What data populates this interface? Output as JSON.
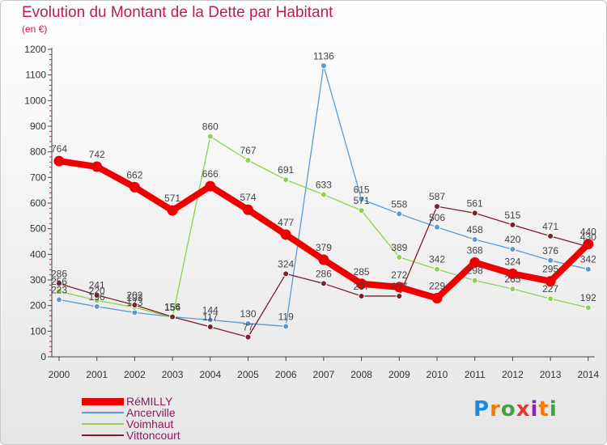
{
  "header": {
    "title": "Evolution du Montant de la Dette par Habitant",
    "subtitle": "(en €)"
  },
  "logo": {
    "text": "Proxiti",
    "letters": [
      "P",
      "r",
      "o",
      "x",
      "i",
      "t",
      "i"
    ],
    "colors": [
      "#1e88e5",
      "#f57c00",
      "#43a047",
      "#e53935",
      "#8e24aa",
      "#f57c00",
      "#43a047"
    ]
  },
  "chart_data": {
    "type": "line",
    "title": "Evolution du Montant de la Dette par Habitant",
    "ylabel": "(en €)",
    "xlabel": "",
    "ylim": [
      0,
      1200
    ],
    "yticks": [
      0,
      100,
      200,
      300,
      400,
      500,
      600,
      700,
      800,
      900,
      1000,
      1100,
      1200
    ],
    "categories": [
      "2000",
      "2001",
      "2002",
      "2003",
      "2004",
      "2005",
      "2006",
      "2007",
      "2008",
      "2009",
      "2010",
      "2011",
      "2012",
      "2013",
      "2014"
    ],
    "grid": false,
    "legend_position": "bottom-left",
    "series": [
      {
        "name": "RéMILLY",
        "color": "#ee0000",
        "values": [
          764,
          742,
          662,
          571,
          666,
          574,
          477,
          379,
          285,
          272,
          229,
          368,
          324,
          295,
          440
        ]
      },
      {
        "name": "Ancerville",
        "color": "#5b9bd5",
        "values": [
          223,
          196,
          173,
          156,
          144,
          130,
          119,
          1136,
          615,
          558,
          506,
          458,
          420,
          376,
          342
        ]
      },
      {
        "name": "Voimhaut",
        "color": "#8fd14f",
        "values": [
          256,
          220,
          193,
          154,
          860,
          767,
          691,
          633,
          571,
          389,
          342,
          298,
          265,
          227,
          192
        ]
      },
      {
        "name": "Vittoncourt",
        "color": "#7b1f2a",
        "values": [
          286,
          241,
          202,
          156,
          117,
          77,
          324,
          286,
          237,
          237,
          587,
          561,
          515,
          471,
          430
        ]
      }
    ]
  }
}
